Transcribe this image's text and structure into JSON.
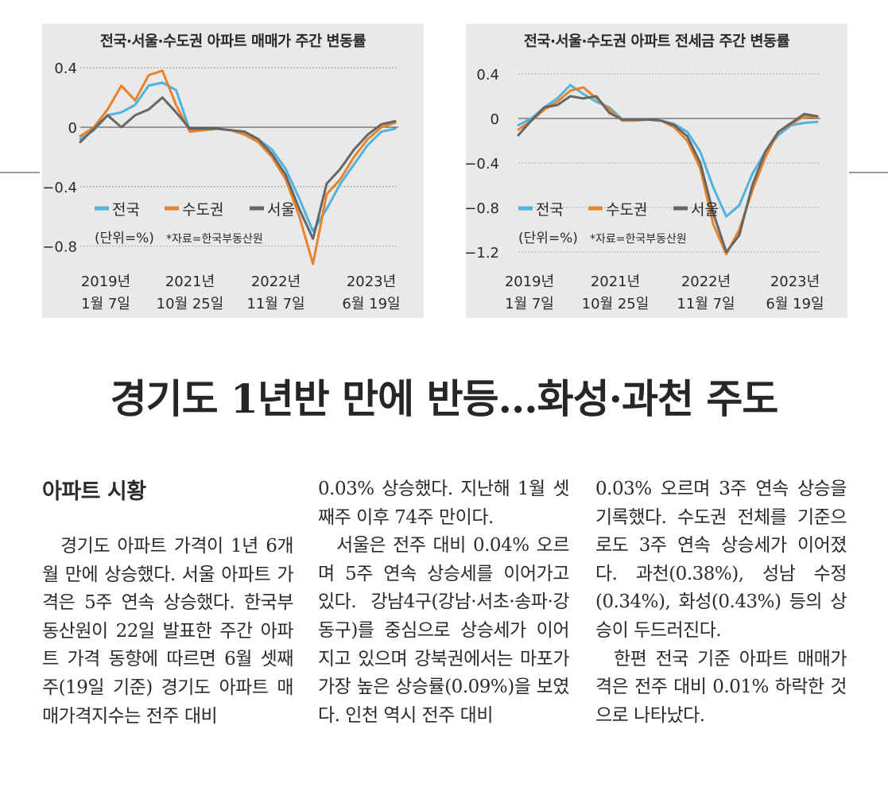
{
  "headline": "경기도 1년반 만에 반등…화성·과천 주도",
  "section_label": "아파트 시황",
  "article": {
    "col1": [
      {
        "text": "경기도 아파트 가격이 1년 6개월 만에 상승했다. 서울 아파트 가격은 5주 연속 상승했다. 한국부동산원이 22일 발표한 주간 아파트 가격 동향에 따르면 6월 셋째주(19일 기준) 경기도 아파트 매매가격지수는 전주 대비",
        "indent": true
      }
    ],
    "col2": [
      {
        "text": "0.03% 상승했다. 지난해 1월 셋째주 이후 74주 만이다.",
        "indent": false
      },
      {
        "text": "서울은 전주 대비 0.04% 오르며 5주 연속 상승세를 이어가고 있다. 강남4구(강남·서초·송파·강동구)를 중심으로 상승세가 이어지고 있으며 강북권에서는 마포가 가장 높은 상승률(0.09%)을 보였다. 인천 역시 전주 대비",
        "indent": true
      }
    ],
    "col3": [
      {
        "text": "0.03% 오르며 3주 연속 상승을 기록했다. 수도권 전체를 기준으로도 3주 연속 상승세가 이어졌다. 과천(0.38%), 성남 수정(0.34%), 화성(0.43%) 등의 상승이 두드러진다.",
        "indent": false
      },
      {
        "text": "한편 전국 기준 아파트 매매가격은 전주 대비 0.01% 하락한 것으로 나타났다.",
        "indent": true
      }
    ]
  },
  "colors": {
    "national": "#4fb3e0",
    "capital_area": "#e8832a",
    "seoul": "#666666",
    "panel_bg": "#e9e9e9"
  },
  "chart_data": [
    {
      "type": "line",
      "title": "전국·서울·수도권 아파트 매매가 주간 변동률",
      "unit_note": "(단위=%)",
      "source_note": "*자료=한국부동산원",
      "xlabels": [
        [
          "2019년",
          "1월 7일"
        ],
        [
          "2021년",
          "10월 25일"
        ],
        [
          "2022년",
          "11월 7일"
        ],
        [
          "2023년",
          "6월 19일"
        ]
      ],
      "x": [
        0,
        10,
        20,
        30,
        40,
        50,
        60,
        70,
        80,
        90,
        100,
        110,
        120,
        130,
        140,
        150,
        160,
        170,
        180,
        190,
        200,
        210,
        220,
        230
      ],
      "yticks": [
        "0.4",
        "0",
        "−0.4",
        "−0.8"
      ],
      "ytick_values": [
        0.4,
        0,
        -0.4,
        -0.8
      ],
      "ylim": [
        -0.95,
        0.45
      ],
      "grid": true,
      "legend": "center-left",
      "series": [
        {
          "name": "전국",
          "color_key": "national",
          "values": [
            -0.08,
            -0.02,
            0.08,
            0.1,
            0.15,
            0.28,
            0.3,
            0.25,
            -0.02,
            -0.02,
            -0.01,
            -0.02,
            -0.04,
            -0.08,
            -0.15,
            -0.28,
            -0.48,
            -0.7,
            -0.55,
            -0.38,
            -0.25,
            -0.12,
            -0.03,
            -0.01
          ]
        },
        {
          "name": "수도권",
          "color_key": "capital_area",
          "values": [
            -0.06,
            0.0,
            0.12,
            0.28,
            0.18,
            0.35,
            0.38,
            0.15,
            -0.03,
            -0.02,
            -0.01,
            -0.02,
            -0.05,
            -0.1,
            -0.2,
            -0.35,
            -0.6,
            -0.92,
            -0.45,
            -0.35,
            -0.2,
            -0.08,
            0.0,
            0.03
          ]
        },
        {
          "name": "서울",
          "color_key": "seoul",
          "values": [
            -0.1,
            -0.01,
            0.08,
            0.0,
            0.08,
            0.12,
            0.2,
            0.1,
            -0.01,
            -0.01,
            -0.01,
            -0.02,
            -0.03,
            -0.08,
            -0.18,
            -0.32,
            -0.55,
            -0.75,
            -0.38,
            -0.28,
            -0.15,
            -0.05,
            0.02,
            0.04
          ]
        }
      ]
    },
    {
      "type": "line",
      "title": "전국·서울·수도권 아파트 전세금 주간 변동률",
      "unit_note": "(단위=%)",
      "source_note": "*자료=한국부동산원",
      "xlabels": [
        [
          "2019년",
          "1월 7일"
        ],
        [
          "2021년",
          "10월 25일"
        ],
        [
          "2022년",
          "11월 7일"
        ],
        [
          "2023년",
          "6월 19일"
        ]
      ],
      "x": [
        0,
        10,
        20,
        30,
        40,
        50,
        60,
        70,
        80,
        90,
        100,
        110,
        120,
        130,
        140,
        150,
        160,
        170,
        180,
        190,
        200,
        210,
        220,
        230
      ],
      "yticks": [
        "0.4",
        "0",
        "−0.4",
        "−0.8",
        "−1.2"
      ],
      "ytick_values": [
        0.4,
        0,
        -0.4,
        -0.8,
        -1.2
      ],
      "ylim": [
        -1.3,
        0.45
      ],
      "grid": true,
      "legend": "center-left",
      "series": [
        {
          "name": "전국",
          "color_key": "national",
          "values": [
            -0.06,
            0.0,
            0.1,
            0.18,
            0.3,
            0.22,
            0.15,
            0.1,
            -0.01,
            -0.01,
            -0.01,
            -0.02,
            -0.05,
            -0.12,
            -0.3,
            -0.62,
            -0.88,
            -0.78,
            -0.5,
            -0.3,
            -0.15,
            -0.06,
            -0.04,
            -0.03
          ]
        },
        {
          "name": "수도권",
          "color_key": "capital_area",
          "values": [
            -0.1,
            -0.02,
            0.08,
            0.15,
            0.25,
            0.28,
            0.18,
            0.08,
            -0.02,
            -0.02,
            -0.01,
            -0.02,
            -0.08,
            -0.2,
            -0.45,
            -0.95,
            -1.22,
            -1.0,
            -0.65,
            -0.35,
            -0.12,
            -0.05,
            0.02,
            0.01
          ]
        },
        {
          "name": "서울",
          "color_key": "seoul",
          "values": [
            -0.15,
            -0.02,
            0.1,
            0.12,
            0.2,
            0.18,
            0.2,
            0.05,
            -0.01,
            -0.01,
            -0.01,
            -0.02,
            -0.06,
            -0.16,
            -0.4,
            -0.85,
            -1.2,
            -1.05,
            -0.6,
            -0.3,
            -0.12,
            -0.04,
            0.04,
            0.02
          ]
        }
      ]
    }
  ]
}
